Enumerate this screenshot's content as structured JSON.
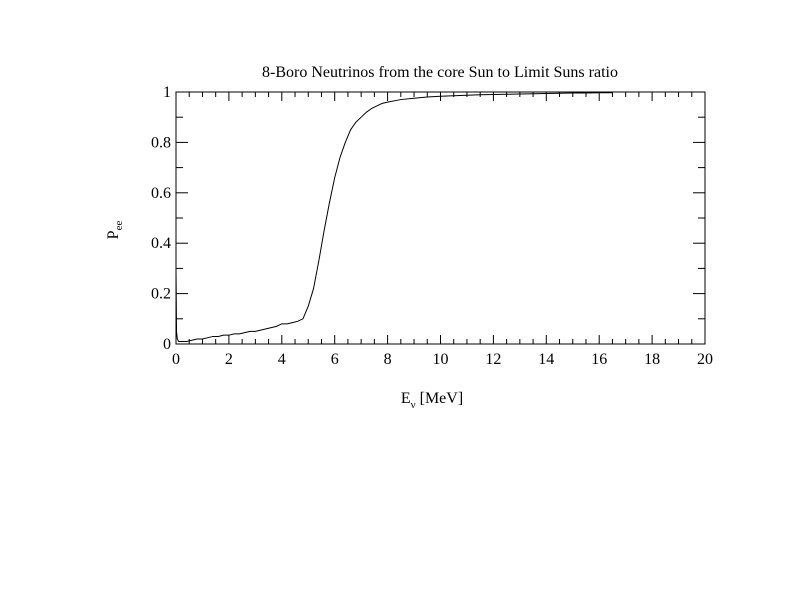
{
  "chart_data": {
    "type": "line",
    "title": "8-Boro Neutrinos from the core Sun to Limit Suns ratio",
    "xlabel_main": "E",
    "xlabel_sub": "ν",
    "xlabel_unit": " [MeV]",
    "ylabel_main": "P",
    "ylabel_sub": "ee",
    "xlim": [
      0,
      20
    ],
    "ylim": [
      0,
      1
    ],
    "x_ticks": [
      "0",
      "2",
      "4",
      "6",
      "8",
      "10",
      "12",
      "14",
      "16",
      "18",
      "20"
    ],
    "y_ticks": [
      "0",
      "0.2",
      "0.4",
      "0.6",
      "0.8",
      "1"
    ],
    "grid": false,
    "legend": "none",
    "series": [
      {
        "color": "#000000",
        "x": [
          0,
          0.02,
          0.05,
          0.1,
          0.2,
          0.4,
          0.6,
          0.8,
          1.0,
          1.2,
          1.4,
          1.6,
          1.8,
          2.0,
          2.2,
          2.4,
          2.6,
          2.8,
          3.0,
          3.2,
          3.4,
          3.6,
          3.8,
          4.0,
          4.2,
          4.4,
          4.6,
          4.8,
          5.0,
          5.2,
          5.4,
          5.6,
          5.8,
          6.0,
          6.2,
          6.4,
          6.6,
          6.8,
          7.0,
          7.2,
          7.4,
          7.6,
          7.8,
          8.0,
          8.5,
          9.0,
          9.5,
          10.0,
          10.5,
          11.0,
          11.5,
          12.0,
          12.5,
          13.0,
          13.5,
          14.0,
          14.5,
          15.0,
          15.5,
          16.0,
          16.5
        ],
        "y": [
          0.3,
          0.05,
          0.02,
          0.01,
          0.01,
          0.01,
          0.015,
          0.02,
          0.02,
          0.025,
          0.03,
          0.03,
          0.035,
          0.035,
          0.04,
          0.04,
          0.045,
          0.05,
          0.05,
          0.055,
          0.06,
          0.065,
          0.07,
          0.08,
          0.08,
          0.085,
          0.09,
          0.1,
          0.15,
          0.22,
          0.33,
          0.45,
          0.56,
          0.66,
          0.74,
          0.8,
          0.85,
          0.88,
          0.9,
          0.92,
          0.935,
          0.945,
          0.955,
          0.96,
          0.97,
          0.975,
          0.98,
          0.983,
          0.985,
          0.987,
          0.989,
          0.99,
          0.991,
          0.992,
          0.993,
          0.994,
          0.995,
          0.996,
          0.996,
          0.997,
          0.997
        ]
      }
    ]
  }
}
